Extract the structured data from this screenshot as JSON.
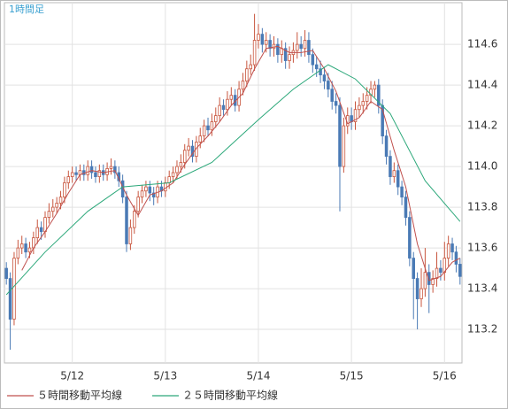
{
  "chart_data": {
    "type": "candlestick",
    "title": "1時間足",
    "up_color": "#c8553d",
    "down_color": "#4a7ab5",
    "grid": true,
    "legend": "bottom-left",
    "xlim": [
      -0.5,
      117.5
    ],
    "xticks": [
      {
        "value": 17,
        "label": "5/12"
      },
      {
        "value": 41,
        "label": "5/13"
      },
      {
        "value": 65,
        "label": "5/14"
      },
      {
        "value": 89,
        "label": "5/15"
      },
      {
        "value": 113,
        "label": "5/16"
      }
    ],
    "ylim": [
      113.035,
      114.805
    ],
    "yticks": [
      113.2,
      113.4,
      113.6,
      113.8,
      {
        "value": 114,
        "label": "114.0"
      },
      114.2,
      114.4,
      114.6
    ],
    "open": [
      113.5,
      113.45,
      113.25,
      113.55,
      113.6,
      113.62,
      113.58,
      113.6,
      113.65,
      113.7,
      113.68,
      113.75,
      113.78,
      113.8,
      113.82,
      113.85,
      113.92,
      113.95,
      113.97,
      113.96,
      113.98,
      113.96,
      114.0,
      113.97,
      113.95,
      113.98,
      113.96,
      113.99,
      114.0,
      113.97,
      113.93,
      113.85,
      113.62,
      113.7,
      113.78,
      113.85,
      113.88,
      113.9,
      113.87,
      113.85,
      113.9,
      113.88,
      113.92,
      113.95,
      113.97,
      114.0,
      114.02,
      114.08,
      114.1,
      114.05,
      114.12,
      114.15,
      114.2,
      114.18,
      114.22,
      114.25,
      114.3,
      114.28,
      114.33,
      114.35,
      114.3,
      114.38,
      114.42,
      114.48,
      114.5,
      114.62,
      114.65,
      114.6,
      114.62,
      114.58,
      114.6,
      114.55,
      114.58,
      114.52,
      114.55,
      114.57,
      114.6,
      114.58,
      114.62,
      114.55,
      114.5,
      114.48,
      114.45,
      114.42,
      114.38,
      114.32,
      114.3,
      114.0,
      114.2,
      114.25,
      114.22,
      114.28,
      114.3,
      114.32,
      114.35,
      114.38,
      114.4,
      114.3,
      114.15,
      114.05,
      113.95,
      113.98,
      113.9,
      113.85,
      113.75,
      113.55,
      113.45,
      113.35,
      113.4,
      113.48,
      113.42,
      113.45,
      113.5,
      113.48,
      113.55,
      113.62,
      113.58,
      113.52
    ],
    "high": [
      113.53,
      113.48,
      113.58,
      113.64,
      113.66,
      113.65,
      113.63,
      113.68,
      113.74,
      113.73,
      113.78,
      113.82,
      113.84,
      113.85,
      113.88,
      113.95,
      113.98,
      114.0,
      114.0,
      114.01,
      114.01,
      114.03,
      114.03,
      114.0,
      114.01,
      114.01,
      114.02,
      114.04,
      114.03,
      114.0,
      113.96,
      113.88,
      113.74,
      113.81,
      113.88,
      113.91,
      113.93,
      113.93,
      113.9,
      113.93,
      113.93,
      113.95,
      113.98,
      114.0,
      114.03,
      114.06,
      114.11,
      114.14,
      114.13,
      114.15,
      114.19,
      114.23,
      114.24,
      114.26,
      114.29,
      114.34,
      114.33,
      114.37,
      114.39,
      114.38,
      114.42,
      114.46,
      114.52,
      114.55,
      114.75,
      114.7,
      114.68,
      114.66,
      114.65,
      114.64,
      114.63,
      114.62,
      114.61,
      114.59,
      114.61,
      114.66,
      114.64,
      114.67,
      114.66,
      114.58,
      114.54,
      114.52,
      114.49,
      114.46,
      114.42,
      114.36,
      114.34,
      114.24,
      114.29,
      114.29,
      114.32,
      114.34,
      114.36,
      114.39,
      114.42,
      114.42,
      114.43,
      114.33,
      114.18,
      114.08,
      114.02,
      114.01,
      113.93,
      113.88,
      113.78,
      113.58,
      113.48,
      113.5,
      113.6,
      113.52,
      113.49,
      113.58,
      113.54,
      113.63,
      113.66,
      113.65,
      113.61,
      113.55
    ],
    "low": [
      113.42,
      113.1,
      113.22,
      113.52,
      113.57,
      113.55,
      113.55,
      113.57,
      113.62,
      113.64,
      113.65,
      113.72,
      113.75,
      113.77,
      113.79,
      113.82,
      113.89,
      113.92,
      113.93,
      113.93,
      113.93,
      113.93,
      113.94,
      113.92,
      113.92,
      113.93,
      113.93,
      113.96,
      113.94,
      113.9,
      113.82,
      113.58,
      113.59,
      113.67,
      113.75,
      113.82,
      113.85,
      113.83,
      113.81,
      113.82,
      113.85,
      113.85,
      113.89,
      113.92,
      113.94,
      113.97,
      113.99,
      114.05,
      114.02,
      114.02,
      114.09,
      114.12,
      114.15,
      114.15,
      114.19,
      114.22,
      114.25,
      114.25,
      114.3,
      114.27,
      114.27,
      114.35,
      114.39,
      114.45,
      114.47,
      114.58,
      114.56,
      114.56,
      114.54,
      114.54,
      114.51,
      114.51,
      114.48,
      114.48,
      114.51,
      114.53,
      114.54,
      114.54,
      114.51,
      114.46,
      114.44,
      114.41,
      114.38,
      114.34,
      114.28,
      114.26,
      113.78,
      113.97,
      114.16,
      114.18,
      114.18,
      114.24,
      114.26,
      114.28,
      114.31,
      114.34,
      114.26,
      114.11,
      114.01,
      113.91,
      113.92,
      113.86,
      113.81,
      113.71,
      113.51,
      113.25,
      113.2,
      113.31,
      113.36,
      113.28,
      113.38,
      113.41,
      113.44,
      113.44,
      113.51,
      113.54,
      113.48,
      113.42
    ],
    "close": [
      113.45,
      113.25,
      113.55,
      113.6,
      113.62,
      113.58,
      113.6,
      113.65,
      113.7,
      113.68,
      113.75,
      113.78,
      113.8,
      113.82,
      113.85,
      113.92,
      113.95,
      113.97,
      113.96,
      113.98,
      113.96,
      114.0,
      113.97,
      113.95,
      113.98,
      113.96,
      113.99,
      114.0,
      113.97,
      113.93,
      113.85,
      113.62,
      113.7,
      113.78,
      113.85,
      113.88,
      113.9,
      113.87,
      113.85,
      113.9,
      113.88,
      113.92,
      113.95,
      113.97,
      114.0,
      114.02,
      114.08,
      114.1,
      114.05,
      114.12,
      114.15,
      114.2,
      114.18,
      114.22,
      114.25,
      114.3,
      114.28,
      114.33,
      114.35,
      114.3,
      114.38,
      114.42,
      114.48,
      114.5,
      114.62,
      114.65,
      114.6,
      114.62,
      114.58,
      114.6,
      114.55,
      114.58,
      114.52,
      114.55,
      114.57,
      114.6,
      114.58,
      114.62,
      114.55,
      114.5,
      114.48,
      114.45,
      114.42,
      114.38,
      114.32,
      114.3,
      114.0,
      114.2,
      114.25,
      114.22,
      114.28,
      114.3,
      114.32,
      114.35,
      114.38,
      114.4,
      114.3,
      114.15,
      114.05,
      113.95,
      113.98,
      113.9,
      113.85,
      113.75,
      113.55,
      113.45,
      113.35,
      113.4,
      113.48,
      113.42,
      113.45,
      113.5,
      113.48,
      113.55,
      113.62,
      113.58,
      113.52,
      113.46
    ],
    "series": [
      {
        "name": "５時間移動平均線",
        "color": "#c0504d",
        "x": [
          4,
          7,
          10,
          13,
          16,
          19,
          22,
          25,
          28,
          31,
          34,
          37,
          40,
          43,
          46,
          49,
          52,
          55,
          58,
          61,
          64,
          67,
          70,
          73,
          76,
          79,
          82,
          85,
          88,
          91,
          94,
          97,
          100,
          103,
          106,
          109,
          112,
          115,
          117
        ],
        "values": [
          113.49,
          113.6,
          113.68,
          113.77,
          113.87,
          113.96,
          113.98,
          113.97,
          113.98,
          113.86,
          113.76,
          113.86,
          113.88,
          113.92,
          114.01,
          114.09,
          114.15,
          114.22,
          114.3,
          114.36,
          114.48,
          114.58,
          114.59,
          114.56,
          114.56,
          114.57,
          114.48,
          114.37,
          114.21,
          114.24,
          114.32,
          114.28,
          114.08,
          113.9,
          113.62,
          113.44,
          113.46,
          113.53,
          113.55
        ]
      },
      {
        "name": "２５時間移動平均線",
        "color": "#2ca87a",
        "x": [
          0,
          10,
          21,
          30,
          42,
          53,
          65,
          74,
          83,
          90,
          99,
          108,
          117
        ],
        "values": [
          113.37,
          113.58,
          113.78,
          113.9,
          113.92,
          114.02,
          114.23,
          114.38,
          114.5,
          114.43,
          114.26,
          113.93,
          113.73
        ]
      }
    ]
  }
}
